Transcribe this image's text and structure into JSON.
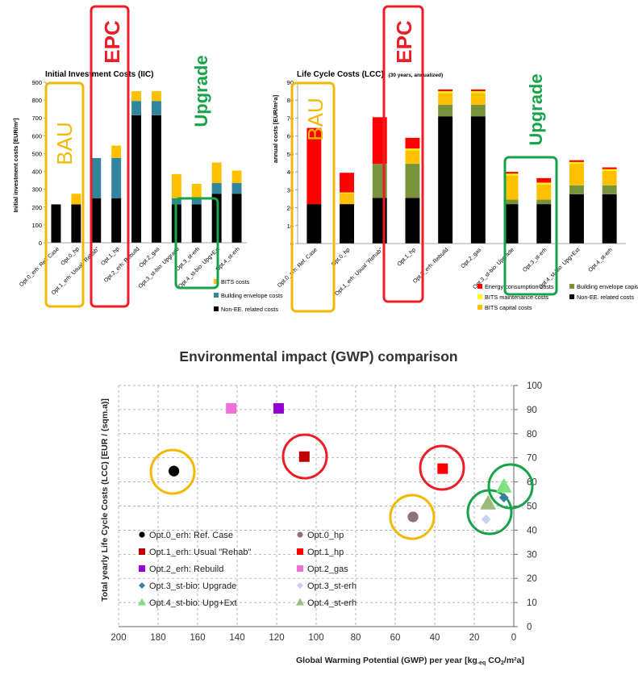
{
  "colors": {
    "black": "#000000",
    "teal": "#31859c",
    "bits_yellow": "#ffc000",
    "red": "#ff0000",
    "olive": "#77933c",
    "maint_yellow": "#ffff00",
    "bau": "#f5b800",
    "epc": "#ee1c24",
    "upgrade": "#16a34a",
    "purple": "#9400d3",
    "pink": "#ee6fd6",
    "gray_circle": "#8c7272",
    "dark_red": "#c00000",
    "steel": "#3a7ea0",
    "light_blue": "#c5d4ee",
    "light_green": "#7fe27f",
    "sage": "#9bbb79"
  },
  "annotations": {
    "bau": "BAU",
    "epc": "EPC",
    "upgrade": "Upgrade"
  },
  "chart_data": [
    {
      "type": "bar",
      "stacked": true,
      "title": "Initial Investment Costs (IIC)",
      "ylabel": "Initial investment costs [EUR/m²]",
      "ylim": [
        0,
        900
      ],
      "yticks": [
        0,
        100,
        200,
        300,
        400,
        500,
        600,
        700,
        800,
        900
      ],
      "grid": false,
      "legend_position": "bottom-right",
      "categories": [
        "Opt.0_erh: Ref. Case",
        "Opt.0_hp",
        "Opt.1_erh: Usual \"Rehab\"",
        "Opt.1_hp",
        "Opt.2_erh: Rebuild",
        "Opt.2_gas",
        "Opt.3_st-bio: Upgrade",
        "Opt.3_st-erh",
        "Opt.4_st-bio: Upg+Ext",
        "Opt.4_st-erh"
      ],
      "series": [
        {
          "name": "Non-EE. related costs",
          "color": "#000000",
          "values": [
            215,
            215,
            250,
            250,
            715,
            715,
            215,
            215,
            275,
            275
          ]
        },
        {
          "name": "Building envelope costs",
          "color": "#31859c",
          "values": [
            0,
            0,
            225,
            225,
            80,
            80,
            35,
            35,
            60,
            60
          ]
        },
        {
          "name": "BITS costs",
          "color": "#ffc000",
          "values": [
            0,
            60,
            0,
            70,
            55,
            55,
            135,
            80,
            115,
            70
          ]
        }
      ],
      "legend_order": [
        2,
        1,
        0
      ]
    },
    {
      "type": "bar",
      "stacked": true,
      "title": "Life Cycle Costs (LCC)",
      "subtitle": "(30 years, annualized)",
      "ylabel": "annual costs [EUR/m²a]",
      "ylim": [
        0,
        90
      ],
      "yticks": [
        0,
        10,
        20,
        30,
        40,
        50,
        60,
        70,
        80,
        90
      ],
      "grid": false,
      "legend_position": "bottom",
      "categories": [
        "Opt.0_erh: Ref. Case",
        "Opt.0_hp",
        "Opt.1_erh: Usual \"Rehab\"",
        "Opt.1_hp",
        "Opt.2_erh: Rebuild",
        "Opt.2_gas",
        "Opt.3_st-bio: Upgrade",
        "Opt.3_st-erh",
        "Opt.4_st-bio: Upg+Ext",
        "Opt.4_st-erh"
      ],
      "series": [
        {
          "name": "Non-EE. related costs",
          "color": "#000000",
          "values": [
            22,
            22,
            25.5,
            25.5,
            71,
            71,
            22,
            22,
            27.5,
            27.5
          ]
        },
        {
          "name": "Building envelope capital costs",
          "color": "#77933c",
          "values": [
            0,
            0,
            19,
            19,
            6.5,
            6.5,
            2.5,
            2.5,
            5,
            5
          ]
        },
        {
          "name": "BITS capital costs",
          "color": "#ffc000",
          "values": [
            0,
            6,
            0,
            7.5,
            6.5,
            6.5,
            13.5,
            8.5,
            12,
            8
          ]
        },
        {
          "name": "BITS maintenance costs",
          "color": "#ffff00",
          "values": [
            0,
            0.5,
            0,
            1,
            1,
            1,
            1,
            1,
            1,
            1
          ]
        },
        {
          "name": "Energy consumption costs",
          "color": "#ff0000",
          "values": [
            42.5,
            11,
            26,
            6,
            1,
            1,
            1,
            2.5,
            1,
            1
          ]
        }
      ],
      "legend_order": [
        4,
        3,
        2,
        1,
        0
      ]
    },
    {
      "type": "scatter",
      "title": "Environmental impact (GWP) comparison",
      "xlabel_main": "Global Warming Potential (GWP) per year [kg",
      "xlabel_sub": "-eq",
      "xlabel_tail": " CO",
      "xlabel_sub2": "2",
      "xlabel_end": "/m²a]",
      "ylabel": "Total yearly Life Cycle Costs (LCC)  [EUR / (sqm.a)]",
      "xlim": [
        200,
        0
      ],
      "ylim": [
        0,
        100
      ],
      "xticks": [
        200,
        180,
        160,
        140,
        120,
        100,
        80,
        60,
        40,
        20,
        0
      ],
      "yticks": [
        0,
        10,
        20,
        30,
        40,
        50,
        60,
        70,
        80,
        90,
        100
      ],
      "grid": true,
      "legend_position": "bottom-left",
      "points": [
        {
          "name": "Opt.0_erh: Ref. Case",
          "x": 172,
          "y": 64.5,
          "marker": "circle",
          "color": "#000000"
        },
        {
          "name": "Opt.0_hp",
          "x": 51,
          "y": 45.5,
          "marker": "circle",
          "color": "#8c7272"
        },
        {
          "name": "Opt.1_erh: Usual \"Rehab\"",
          "x": 106,
          "y": 70.5,
          "marker": "square",
          "color": "#c00000"
        },
        {
          "name": "Opt.1_hp",
          "x": 36,
          "y": 65.5,
          "marker": "square",
          "color": "#ff0000"
        },
        {
          "name": "Opt.2_erh: Rebuild",
          "x": 119,
          "y": 90.5,
          "marker": "square",
          "color": "#9400d3"
        },
        {
          "name": "Opt.2_gas",
          "x": 143,
          "y": 90.5,
          "marker": "square",
          "color": "#ee6fd6"
        },
        {
          "name": "Opt.3_st-bio: Upgrade",
          "x": 5,
          "y": 53.5,
          "marker": "diamond",
          "color": "#3a7ea0"
        },
        {
          "name": "Opt.3_st-erh",
          "x": 14,
          "y": 44.5,
          "marker": "diamond",
          "color": "#c5d4ee"
        },
        {
          "name": "Opt.4_st-bio: Upg+Ext",
          "x": 5,
          "y": 58,
          "marker": "triangle",
          "color": "#7fe27f"
        },
        {
          "name": "Opt.4_st-erh",
          "x": 13,
          "y": 51,
          "marker": "triangle",
          "color": "#9bbb79"
        }
      ]
    }
  ]
}
